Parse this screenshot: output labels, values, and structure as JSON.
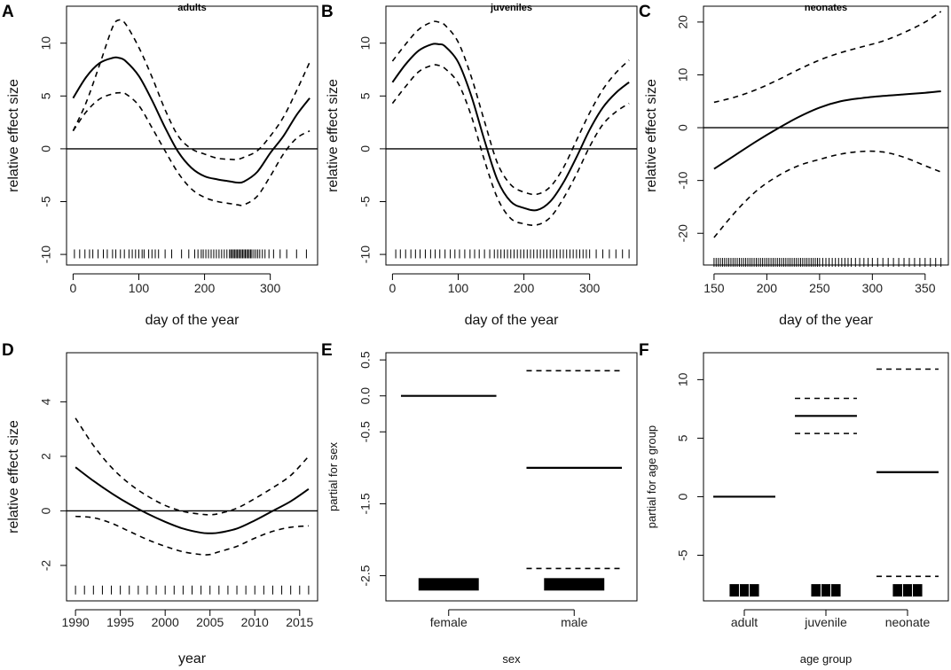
{
  "chart_data": [
    {
      "panel": "A",
      "type": "line",
      "title": "adults",
      "xlabel": "day of the year",
      "ylabel": "relative effect size",
      "xlim": [
        -10,
        372
      ],
      "ylim": [
        -11,
        13.5
      ],
      "xticks": [
        0,
        100,
        200,
        300
      ],
      "yticks": [
        -10,
        -5,
        0,
        5,
        10
      ],
      "hline": 0,
      "rug_y": -10.2,
      "rug_x": [
        2,
        10,
        18,
        25,
        30,
        38,
        46,
        52,
        60,
        65,
        72,
        78,
        85,
        90,
        95,
        100,
        105,
        108,
        115,
        120,
        125,
        130,
        140,
        150,
        165,
        176,
        185,
        190,
        195,
        198,
        202,
        206,
        210,
        214,
        218,
        222,
        226,
        230,
        234,
        238,
        240,
        242,
        244,
        246,
        248,
        250,
        252,
        254,
        256,
        258,
        260,
        262,
        264,
        266,
        268,
        270,
        272,
        275,
        278,
        281,
        284,
        288,
        292,
        298,
        305,
        315,
        325,
        340,
        355
      ],
      "series": [
        {
          "name": "fit",
          "x": [
            0,
            20,
            40,
            60,
            70,
            80,
            100,
            120,
            140,
            160,
            180,
            200,
            220,
            240,
            250,
            260,
            280,
            300,
            320,
            340,
            360
          ],
          "y": [
            4.8,
            6.8,
            8.1,
            8.6,
            8.6,
            8.3,
            6.9,
            4.6,
            2.0,
            -0.3,
            -1.8,
            -2.6,
            -2.9,
            -3.1,
            -3.2,
            -3.1,
            -2.2,
            -0.4,
            1.2,
            3.2,
            4.8
          ]
        },
        {
          "name": "upper",
          "x": [
            0,
            20,
            40,
            60,
            70,
            80,
            100,
            120,
            140,
            160,
            180,
            200,
            220,
            240,
            250,
            260,
            280,
            300,
            320,
            340,
            360
          ],
          "y": [
            1.7,
            4.4,
            7.9,
            11.5,
            12.2,
            11.8,
            9.6,
            6.8,
            3.7,
            1.2,
            0.0,
            -0.5,
            -0.9,
            -1.0,
            -1.0,
            -0.8,
            -0.2,
            1.2,
            3.0,
            5.5,
            8.2
          ]
        },
        {
          "name": "lower",
          "x": [
            0,
            20,
            40,
            60,
            70,
            80,
            100,
            120,
            140,
            160,
            180,
            200,
            220,
            240,
            250,
            260,
            280,
            300,
            320,
            340,
            360
          ],
          "y": [
            1.7,
            3.5,
            4.7,
            5.2,
            5.3,
            5.2,
            4.1,
            2.0,
            -0.2,
            -2.3,
            -3.8,
            -4.6,
            -5.0,
            -5.2,
            -5.3,
            -5.3,
            -4.5,
            -2.6,
            -0.5,
            1.0,
            1.7
          ]
        }
      ]
    },
    {
      "panel": "B",
      "type": "line",
      "title": "juveniles",
      "xlabel": "day of the year",
      "ylabel": "relative effect size",
      "xlim": [
        -10,
        372
      ],
      "ylim": [
        -11,
        13.5
      ],
      "xticks": [
        0,
        100,
        200,
        300
      ],
      "yticks": [
        -10,
        -5,
        0,
        5,
        10
      ],
      "hline": 0,
      "rug_y": -10.2,
      "rug_x": [
        5,
        12,
        20,
        28,
        35,
        42,
        50,
        58,
        65,
        72,
        80,
        88,
        95,
        102,
        110,
        118,
        125,
        132,
        140,
        148,
        155,
        160,
        165,
        170,
        175,
        180,
        185,
        190,
        195,
        200,
        205,
        210,
        215,
        220,
        225,
        230,
        235,
        240,
        245,
        250,
        255,
        260,
        265,
        270,
        275,
        280,
        285,
        290,
        295,
        300,
        310,
        320,
        330,
        340,
        350,
        360
      ],
      "series": [
        {
          "name": "fit",
          "x": [
            0,
            20,
            40,
            60,
            70,
            80,
            100,
            120,
            140,
            160,
            180,
            200,
            220,
            240,
            260,
            280,
            300,
            320,
            340,
            360
          ],
          "y": [
            6.3,
            8.0,
            9.3,
            9.9,
            9.9,
            9.7,
            8.2,
            5.0,
            0.8,
            -3.0,
            -5.0,
            -5.6,
            -5.8,
            -5.0,
            -3.2,
            -0.8,
            1.8,
            3.9,
            5.3,
            6.3
          ]
        },
        {
          "name": "upper",
          "x": [
            0,
            20,
            40,
            60,
            70,
            80,
            100,
            120,
            140,
            160,
            180,
            200,
            220,
            240,
            260,
            280,
            300,
            320,
            340,
            360
          ],
          "y": [
            8.3,
            9.9,
            11.3,
            12.0,
            12.0,
            11.7,
            10.1,
            6.8,
            2.6,
            -1.4,
            -3.4,
            -4.1,
            -4.3,
            -3.6,
            -1.8,
            0.8,
            3.4,
            5.6,
            7.2,
            8.4
          ]
        },
        {
          "name": "lower",
          "x": [
            0,
            20,
            40,
            60,
            70,
            80,
            100,
            120,
            140,
            160,
            180,
            200,
            220,
            240,
            260,
            280,
            300,
            320,
            340,
            360
          ],
          "y": [
            4.3,
            5.9,
            7.3,
            7.9,
            7.9,
            7.6,
            6.2,
            3.1,
            -1.1,
            -4.7,
            -6.6,
            -7.1,
            -7.2,
            -6.5,
            -4.7,
            -2.4,
            0.2,
            2.3,
            3.5,
            4.3
          ]
        }
      ]
    },
    {
      "panel": "C",
      "type": "line",
      "title": "neonates",
      "xlabel": "day of the year",
      "ylabel": "relative effect size",
      "xlim": [
        140,
        372
      ],
      "ylim": [
        -26,
        23
      ],
      "xticks": [
        150,
        200,
        250,
        300,
        350
      ],
      "yticks": [
        -20,
        -10,
        0,
        10,
        20
      ],
      "hline": 0,
      "rug_y": -26,
      "rug_x": [
        150,
        152,
        154,
        156,
        158,
        160,
        162,
        164,
        166,
        168,
        170,
        172,
        174,
        176,
        178,
        180,
        182,
        184,
        186,
        188,
        190,
        192,
        194,
        196,
        198,
        200,
        202,
        204,
        206,
        208,
        210,
        212,
        214,
        216,
        218,
        220,
        222,
        224,
        226,
        228,
        230,
        232,
        234,
        236,
        238,
        240,
        242,
        244,
        246,
        248,
        250,
        253,
        256,
        259,
        262,
        265,
        268,
        271,
        274,
        277,
        280,
        284,
        288,
        292,
        296,
        300,
        305,
        310,
        315,
        320,
        325,
        330,
        335,
        340,
        345,
        350,
        355,
        360,
        365
      ],
      "series": [
        {
          "name": "fit",
          "x": [
            150,
            170,
            190,
            210,
            230,
            250,
            270,
            290,
            310,
            330,
            350,
            365
          ],
          "y": [
            -7.8,
            -5.2,
            -2.6,
            -0.2,
            2.0,
            3.8,
            5.0,
            5.6,
            6.0,
            6.3,
            6.6,
            6.9
          ]
        },
        {
          "name": "upper",
          "x": [
            150,
            170,
            190,
            210,
            230,
            250,
            270,
            290,
            310,
            330,
            350,
            365
          ],
          "y": [
            4.8,
            5.8,
            7.2,
            9.0,
            11.0,
            12.8,
            14.2,
            15.3,
            16.4,
            18.0,
            20.0,
            22.0
          ]
        },
        {
          "name": "lower",
          "x": [
            150,
            170,
            190,
            210,
            230,
            250,
            270,
            290,
            310,
            330,
            350,
            365
          ],
          "y": [
            -20.8,
            -16.0,
            -12.0,
            -9.2,
            -7.2,
            -6.0,
            -5.0,
            -4.5,
            -4.6,
            -5.6,
            -7.2,
            -8.4
          ]
        }
      ]
    },
    {
      "panel": "D",
      "type": "line",
      "title": "",
      "xlabel": "year",
      "ylabel": "relative effect size",
      "xlim": [
        1989,
        2017
      ],
      "ylim": [
        -3.3,
        5.8
      ],
      "xticks": [
        1990,
        1995,
        2000,
        2005,
        2010,
        2015
      ],
      "yticks": [
        -2,
        0,
        2,
        4
      ],
      "hline": 0,
      "rug_y": -3.0,
      "rug_x": [
        1990,
        1991,
        1992,
        1993,
        1994,
        1995,
        1996,
        1997,
        1998,
        1999,
        2000,
        2001,
        2002,
        2003,
        2004,
        2005,
        2006,
        2007,
        2008,
        2009,
        2010,
        2011,
        2012,
        2013,
        2014,
        2015,
        2016
      ],
      "series": [
        {
          "name": "fit",
          "x": [
            1990,
            1992,
            1994,
            1996,
            1998,
            2000,
            2002,
            2004,
            2005,
            2006,
            2008,
            2010,
            2012,
            2014,
            2016
          ],
          "y": [
            1.6,
            1.1,
            0.65,
            0.25,
            -0.1,
            -0.4,
            -0.65,
            -0.8,
            -0.82,
            -0.8,
            -0.65,
            -0.35,
            0.0,
            0.35,
            0.8
          ]
        },
        {
          "name": "upper",
          "x": [
            1990,
            1992,
            1994,
            1996,
            1998,
            2000,
            2002,
            2004,
            2005,
            2006,
            2008,
            2010,
            2012,
            2014,
            2016
          ],
          "y": [
            3.4,
            2.4,
            1.6,
            1.0,
            0.55,
            0.2,
            -0.02,
            -0.12,
            -0.14,
            -0.1,
            0.1,
            0.45,
            0.85,
            1.3,
            2.0
          ]
        },
        {
          "name": "lower",
          "x": [
            1990,
            1992,
            1994,
            1996,
            1998,
            2000,
            2002,
            2004,
            2005,
            2006,
            2008,
            2010,
            2012,
            2014,
            2016
          ],
          "y": [
            -0.2,
            -0.25,
            -0.45,
            -0.75,
            -1.05,
            -1.3,
            -1.5,
            -1.6,
            -1.6,
            -1.5,
            -1.3,
            -1.0,
            -0.75,
            -0.6,
            -0.55
          ]
        }
      ]
    },
    {
      "panel": "E",
      "type": "bar",
      "title": "",
      "xlabel": "sex",
      "ylabel": "partial for sex",
      "ylim": [
        -2.85,
        0.6
      ],
      "yticks": [
        -2.5,
        -1.5,
        -0.5,
        0.0,
        0.5
      ],
      "ytick_labels": [
        "-2.5",
        "-1.5",
        "-0.5",
        "0.0",
        "0.5"
      ],
      "categories": [
        "female",
        "male"
      ],
      "estimates": [
        0.0,
        -1.0
      ],
      "upper": [
        null,
        0.35
      ],
      "lower": [
        null,
        -2.4
      ],
      "rug_y": -2.62
    },
    {
      "panel": "F",
      "type": "bar",
      "title": "",
      "xlabel": "age group",
      "ylabel": "partial for age group",
      "ylim": [
        -8.9,
        12.3
      ],
      "yticks": [
        -5,
        0,
        5,
        10
      ],
      "ytick_labels": [
        "-5",
        "0",
        "5",
        "10"
      ],
      "categories": [
        "adult",
        "juvenile",
        "neonate"
      ],
      "estimates": [
        0.0,
        6.9,
        2.1
      ],
      "upper": [
        null,
        8.4,
        10.9
      ],
      "lower": [
        null,
        5.4,
        -6.8
      ],
      "rug_y": -8.0
    }
  ]
}
